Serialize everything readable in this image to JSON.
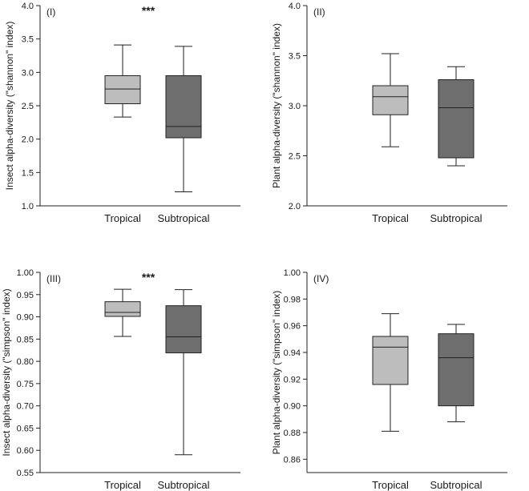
{
  "chart_data": [
    {
      "type": "box",
      "panel_label": "(I)",
      "ylabel": "Insect alpha-diversity (\"shannon\" index)",
      "ylim": [
        1.0,
        4.0
      ],
      "yticks": [
        "1.0",
        "1.5",
        "2.0",
        "2.5",
        "3.0",
        "3.5",
        "4.0"
      ],
      "categories": [
        "Tropical",
        "Subtropical"
      ],
      "significance": "***",
      "boxes": [
        {
          "name": "Tropical",
          "min": 2.33,
          "q1": 2.53,
          "median": 2.75,
          "q3": 2.95,
          "max": 3.41,
          "color": "#bdbdbd"
        },
        {
          "name": "Subtropical",
          "min": 1.21,
          "q1": 2.02,
          "median": 2.19,
          "q3": 2.95,
          "max": 3.39,
          "color": "#6e6e6e"
        }
      ]
    },
    {
      "type": "box",
      "panel_label": "(II)",
      "ylabel": "Plant alpha-diversity (\"shannon\" index)",
      "ylim": [
        2.0,
        4.0
      ],
      "yticks": [
        "2.0",
        "2.5",
        "3.0",
        "3.5",
        "4.0"
      ],
      "categories": [
        "Tropical",
        "Subtropical"
      ],
      "significance": "",
      "boxes": [
        {
          "name": "Tropical",
          "min": 2.59,
          "q1": 2.91,
          "median": 3.09,
          "q3": 3.2,
          "max": 3.52,
          "color": "#bdbdbd"
        },
        {
          "name": "Subtropical",
          "min": 2.4,
          "q1": 2.48,
          "median": 2.98,
          "q3": 3.26,
          "max": 3.39,
          "color": "#6e6e6e"
        }
      ]
    },
    {
      "type": "box",
      "panel_label": "(III)",
      "ylabel": "Insect alpha-diversity (\"simpson\" index)",
      "ylim": [
        0.55,
        1.0
      ],
      "yticks": [
        "0.55",
        "0.60",
        "0.65",
        "0.70",
        "0.75",
        "0.80",
        "0.85",
        "0.90",
        "0.95",
        "1.00"
      ],
      "categories": [
        "Tropical",
        "Subtropical"
      ],
      "significance": "***",
      "boxes": [
        {
          "name": "Tropical",
          "min": 0.856,
          "q1": 0.901,
          "median": 0.91,
          "q3": 0.934,
          "max": 0.962,
          "color": "#bdbdbd"
        },
        {
          "name": "Subtropical",
          "min": 0.59,
          "q1": 0.819,
          "median": 0.855,
          "q3": 0.925,
          "max": 0.961,
          "color": "#6e6e6e"
        }
      ]
    },
    {
      "type": "box",
      "panel_label": "(IV)",
      "ylabel": "Plant alpha-diversity (\"simpson\" index)",
      "ylim": [
        0.85,
        1.0
      ],
      "yticks": [
        "0.86",
        "0.88",
        "0.90",
        "0.92",
        "0.94",
        "0.96",
        "0.98",
        "1.00"
      ],
      "categories": [
        "Tropical",
        "Subtropical"
      ],
      "significance": "",
      "boxes": [
        {
          "name": "Tropical",
          "min": 0.881,
          "q1": 0.916,
          "median": 0.944,
          "q3": 0.952,
          "max": 0.969,
          "color": "#bdbdbd"
        },
        {
          "name": "Subtropical",
          "min": 0.888,
          "q1": 0.9,
          "median": 0.936,
          "q3": 0.954,
          "max": 0.961,
          "color": "#6e6e6e"
        }
      ]
    }
  ]
}
